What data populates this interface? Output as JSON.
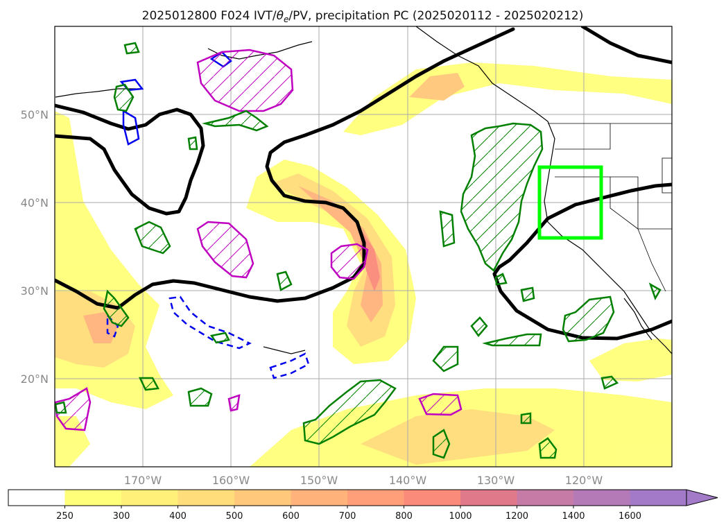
{
  "title": {
    "prefix": "2025012800 F024 IVT/",
    "theta": "θ",
    "theta_sub": "e",
    "suffix": "/PV, precipitation PC (2025020112 - 2025020212)"
  },
  "axes": {
    "lon_labels": [
      "170°W",
      "160°W",
      "150°W",
      "140°W",
      "130°W",
      "120°W"
    ],
    "lat_labels": [
      "50°N",
      "40°N",
      "30°N",
      "20°N"
    ]
  },
  "colorbar": {
    "levels": [
      "250",
      "300",
      "400",
      "500",
      "600",
      "700",
      "800",
      "1000",
      "1200",
      "1400",
      "1600"
    ],
    "colors": [
      "#ffffff",
      "#ffff7a",
      "#fff07a",
      "#ffdd7a",
      "#ffc87a",
      "#ffb37a",
      "#ff9f7a",
      "#fa8a7a",
      "#e07a8a",
      "#c67aa6",
      "#b47ab8",
      "#a27ac8"
    ],
    "extend": "max"
  },
  "chart_data": {
    "type": "map",
    "title": "2025012800 F024 IVT/θe/PV, precipitation PC (2025020112 - 2025020212)",
    "projection": "PlateCarree",
    "lon_range": [
      "180°W",
      "110°W"
    ],
    "lat_range": [
      "10°N",
      "60°N"
    ],
    "lon_ticks": [
      "170°W",
      "160°W",
      "150°W",
      "140°W",
      "130°W",
      "120°W"
    ],
    "lat_ticks": [
      "50°N",
      "40°N",
      "30°N",
      "20°N"
    ],
    "grid": true,
    "fill_variable": "IVT",
    "fill_levels": [
      250,
      300,
      400,
      500,
      600,
      700,
      800,
      1000,
      1200,
      1400,
      1600
    ],
    "contour_colors": {
      "theta_e": "#000000",
      "pv": "#0000ee",
      "precip_positive": "#008000",
      "precip_negative": "#c000c0",
      "target_box": "#00ff00"
    }
  }
}
